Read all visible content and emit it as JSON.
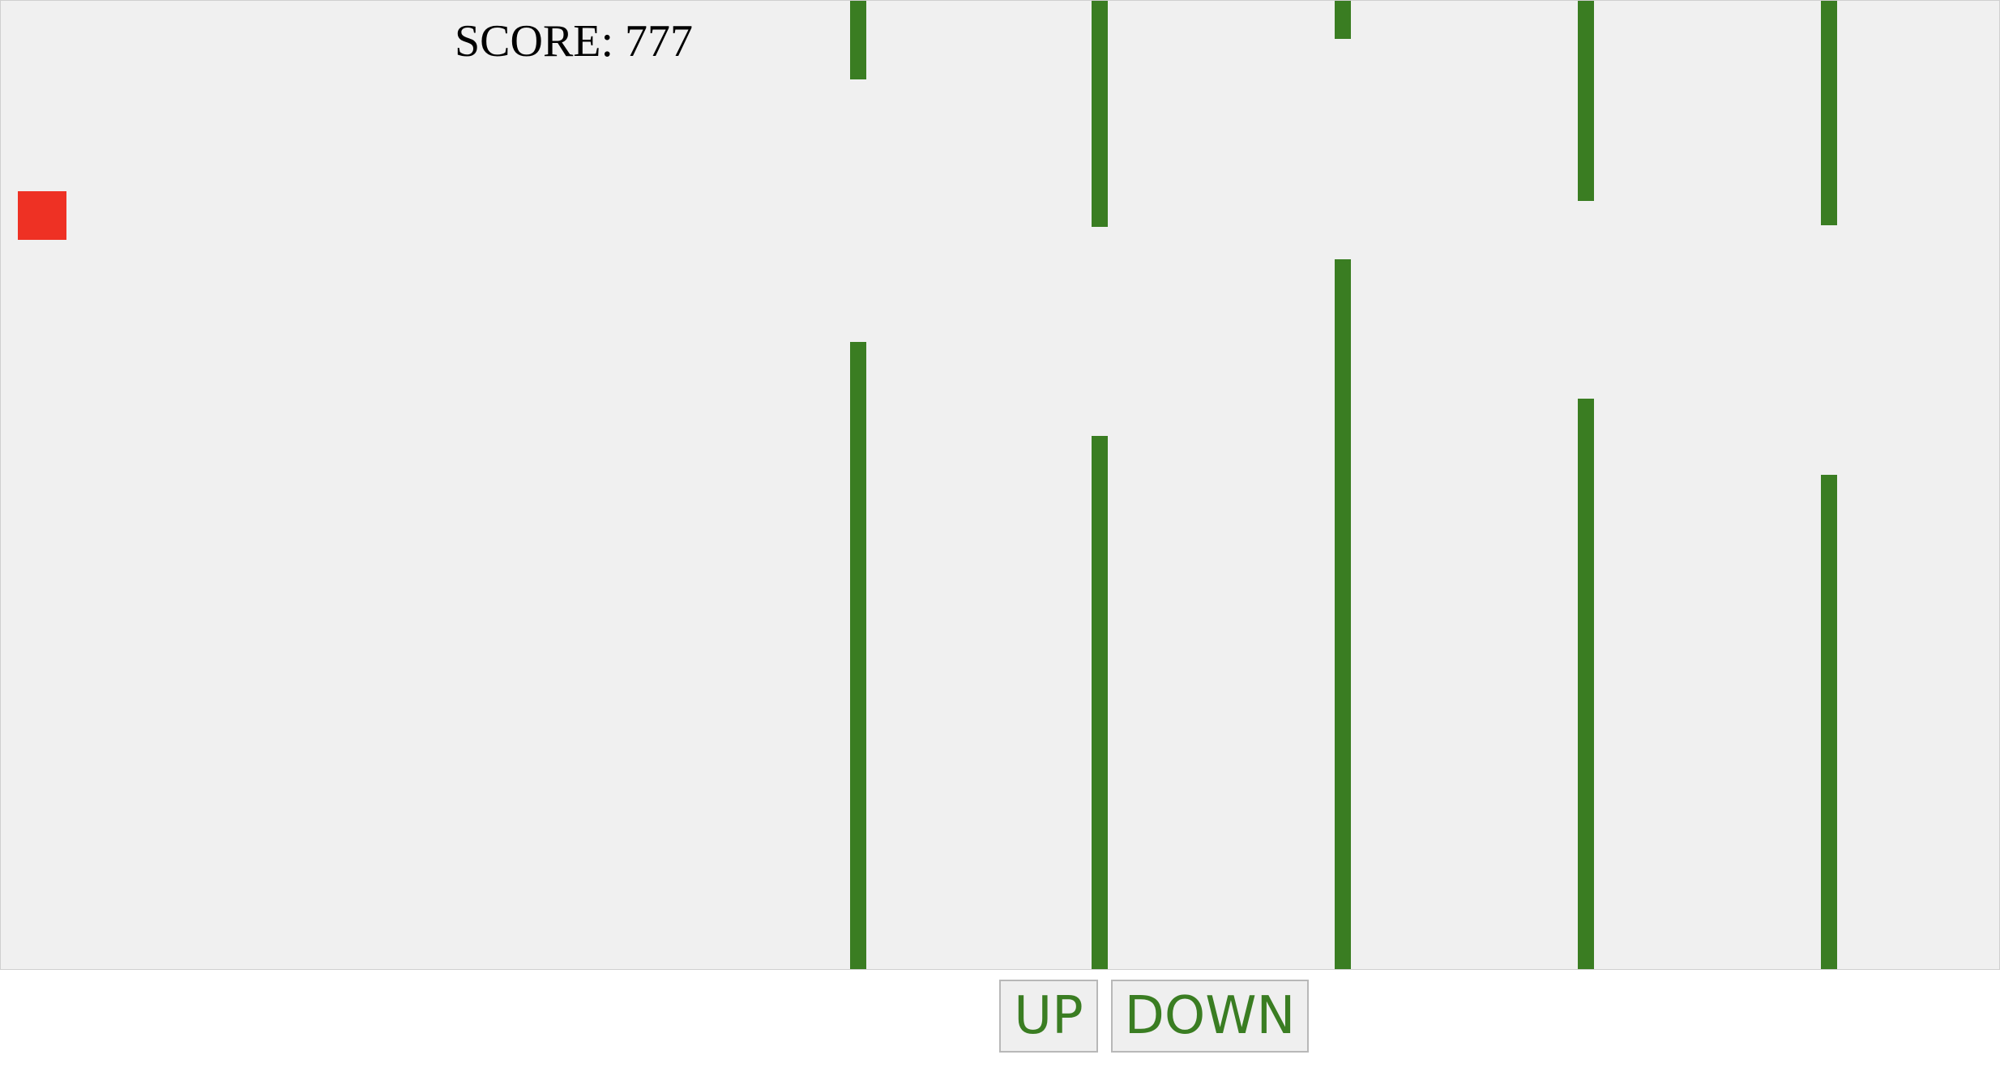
{
  "game": {
    "score_text": "SCORE: 777",
    "colors": {
      "background": "#f0f0f0",
      "player": "#ee3124",
      "pipe": "#3a7d22",
      "button_text": "#3a7d22"
    }
  },
  "controls": {
    "up_label": "UP",
    "down_label": "DOWN"
  }
}
